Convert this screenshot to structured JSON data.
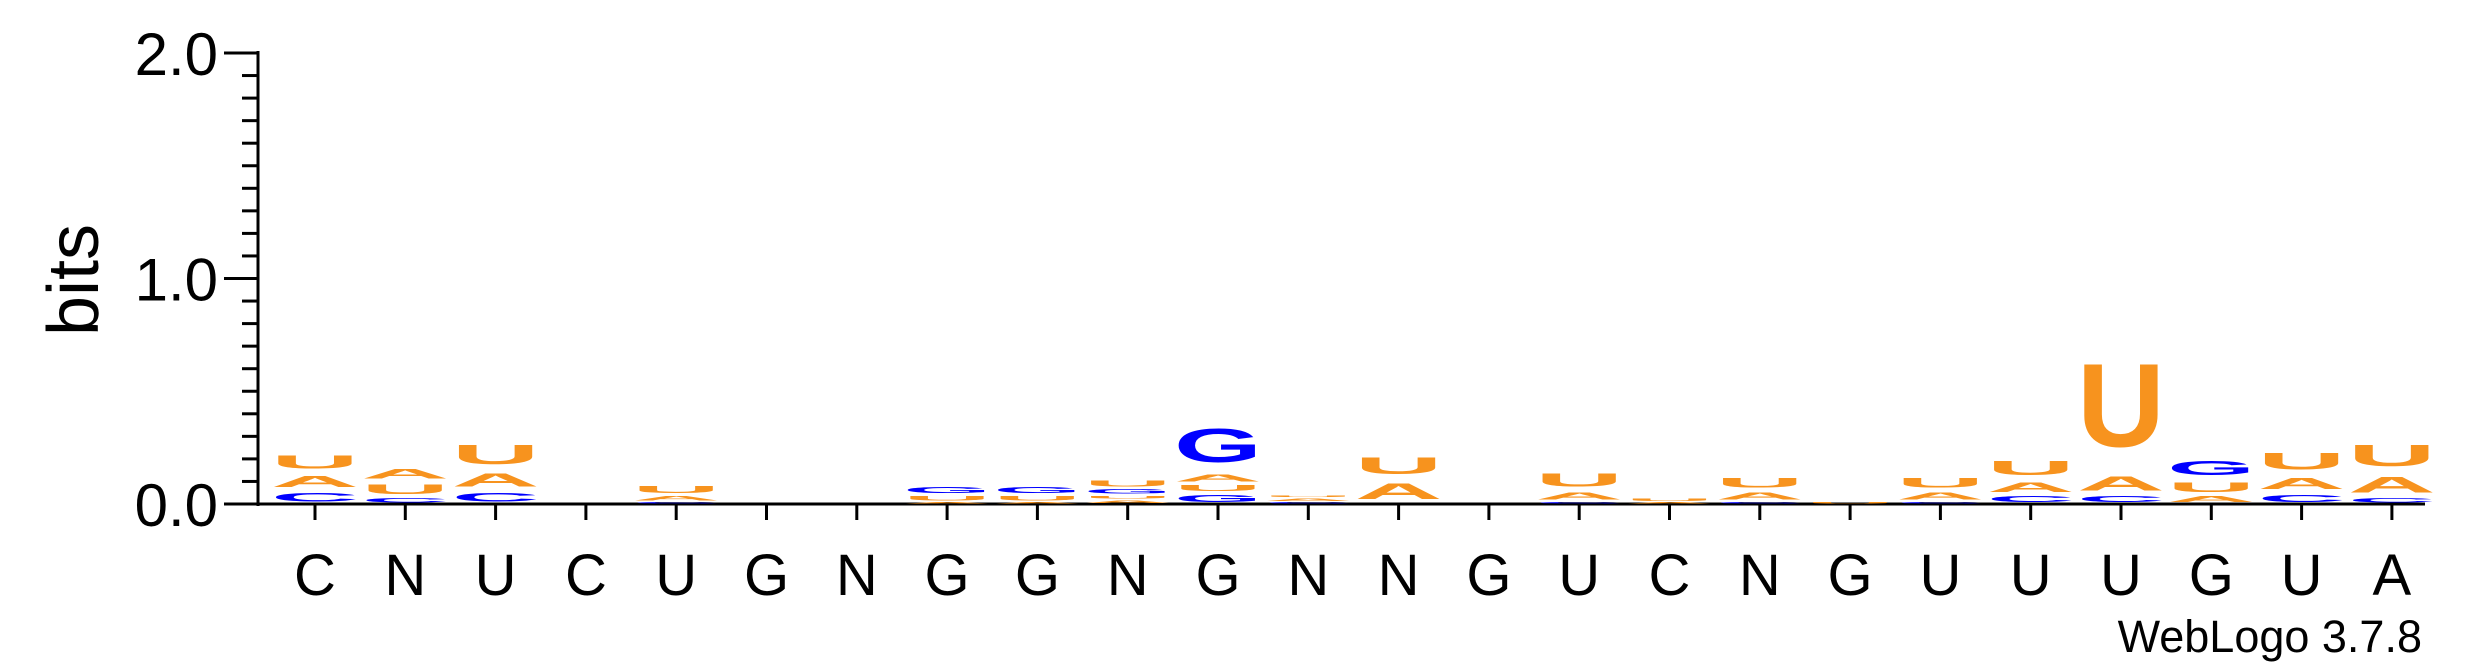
{
  "chart_data": {
    "type": "sequence-logo",
    "ylabel": "bits",
    "ylim": [
      0,
      2.0
    ],
    "y_ticks": [
      {
        "value": 0.0,
        "label": "0.0"
      },
      {
        "value": 1.0,
        "label": "1.0"
      },
      {
        "value": 2.0,
        "label": "2.0"
      }
    ],
    "consensus": [
      "C",
      "N",
      "U",
      "C",
      "U",
      "G",
      "N",
      "G",
      "G",
      "N",
      "G",
      "N",
      "N",
      "G",
      "U",
      "C",
      "N",
      "G",
      "U",
      "U",
      "U",
      "G",
      "U",
      "A"
    ],
    "colors": {
      "A": "#f7931e",
      "U": "#f7931e",
      "G": "#0000ff",
      "C": "#0000ff"
    },
    "positions": [
      {
        "stack": [
          [
            "C",
            0.06
          ],
          [
            "A",
            0.08
          ],
          [
            "U",
            0.09
          ]
        ]
      },
      {
        "stack": [
          [
            "C",
            0.03
          ],
          [
            "U",
            0.07
          ],
          [
            "A",
            0.07
          ]
        ]
      },
      {
        "stack": [
          [
            "C",
            0.06
          ],
          [
            "A",
            0.09
          ],
          [
            "U",
            0.14
          ]
        ]
      },
      {
        "stack": []
      },
      {
        "stack": [
          [
            "C",
            0.01
          ],
          [
            "A",
            0.03
          ],
          [
            "U",
            0.05
          ]
        ]
      },
      {
        "stack": []
      },
      {
        "stack": []
      },
      {
        "stack": [
          [
            "A",
            0.01
          ],
          [
            "U",
            0.03
          ],
          [
            "G",
            0.04
          ]
        ]
      },
      {
        "stack": [
          [
            "A",
            0.01
          ],
          [
            "U",
            0.03
          ],
          [
            "G",
            0.04
          ]
        ]
      },
      {
        "stack": [
          [
            "A",
            0.02
          ],
          [
            "U",
            0.02
          ],
          [
            "G",
            0.03
          ],
          [
            "U",
            0.04
          ]
        ]
      },
      {
        "stack": [
          [
            "G",
            0.05
          ],
          [
            "U",
            0.04
          ],
          [
            "A",
            0.05
          ],
          [
            "G",
            0.24
          ]
        ]
      },
      {
        "stack": [
          [
            "C",
            0.01
          ],
          [
            "A",
            0.02
          ],
          [
            "U",
            0.01
          ]
        ]
      },
      {
        "stack": [
          [
            "A",
            0.11
          ],
          [
            "U",
            0.12
          ]
        ]
      },
      {
        "stack": []
      },
      {
        "stack": [
          [
            "C",
            0.01
          ],
          [
            "A",
            0.05
          ],
          [
            "U",
            0.09
          ]
        ]
      },
      {
        "stack": [
          [
            "A",
            0.01
          ],
          [
            "U",
            0.02
          ]
        ]
      },
      {
        "stack": [
          [
            "C",
            0.01
          ],
          [
            "A",
            0.05
          ],
          [
            "U",
            0.07
          ]
        ]
      },
      {
        "stack": [
          [
            "U",
            0.01
          ]
        ]
      },
      {
        "stack": [
          [
            "C",
            0.01
          ],
          [
            "A",
            0.05
          ],
          [
            "U",
            0.07
          ]
        ]
      },
      {
        "stack": [
          [
            "C",
            0.04
          ],
          [
            "A",
            0.07
          ],
          [
            "U",
            0.1
          ]
        ]
      },
      {
        "stack": [
          [
            "C",
            0.04
          ],
          [
            "A",
            0.1
          ],
          [
            "U",
            0.59
          ]
        ]
      },
      {
        "stack": [
          [
            "A",
            0.04
          ],
          [
            "U",
            0.07
          ],
          [
            "G",
            0.1
          ]
        ]
      },
      {
        "stack": [
          [
            "C",
            0.05
          ],
          [
            "A",
            0.08
          ],
          [
            "U",
            0.12
          ]
        ]
      },
      {
        "stack": [
          [
            "C",
            0.03
          ],
          [
            "A",
            0.11
          ],
          [
            "U",
            0.15
          ]
        ]
      }
    ]
  },
  "watermark": "WebLogo 3.7.8"
}
